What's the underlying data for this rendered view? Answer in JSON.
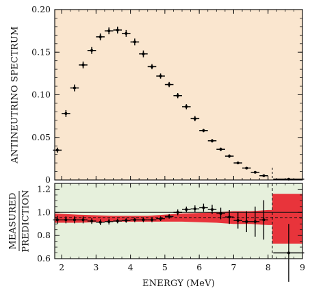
{
  "chart_data": [
    {
      "type": "scatter",
      "title": "",
      "xlabel": "",
      "ylabel": "ANTINEUTRINO SPECTRUM",
      "xlim": [
        1.8,
        9.0
      ],
      "ylim": [
        0,
        0.2
      ],
      "background": "#fae6cf",
      "yticks": [
        "0",
        "0.05",
        "0.10",
        "0.15",
        "0.20"
      ],
      "grid": false,
      "series": [
        {
          "color": "#000000",
          "x": [
            1.875,
            2.125,
            2.375,
            2.625,
            2.875,
            3.125,
            3.375,
            3.625,
            3.875,
            4.125,
            4.375,
            4.625,
            4.875,
            5.125,
            5.375,
            5.625,
            5.875,
            6.125,
            6.375,
            6.625,
            6.875,
            7.125,
            7.375,
            7.625,
            7.875,
            8.6
          ],
          "y": [
            0.035,
            0.078,
            0.108,
            0.135,
            0.152,
            0.168,
            0.175,
            0.176,
            0.172,
            0.162,
            0.148,
            0.133,
            0.122,
            0.112,
            0.099,
            0.086,
            0.072,
            0.058,
            0.046,
            0.036,
            0.028,
            0.02,
            0.014,
            0.009,
            0.005,
            0.001
          ],
          "xerr": [
            0.125,
            0.125,
            0.125,
            0.125,
            0.125,
            0.125,
            0.125,
            0.125,
            0.125,
            0.125,
            0.125,
            0.125,
            0.125,
            0.125,
            0.125,
            0.125,
            0.125,
            0.125,
            0.125,
            0.125,
            0.125,
            0.125,
            0.125,
            0.125,
            0.125,
            0.45
          ],
          "yerr": [
            0.003,
            0.004,
            0.004,
            0.004,
            0.004,
            0.004,
            0.004,
            0.004,
            0.004,
            0.004,
            0.004,
            0.003,
            0.003,
            0.003,
            0.003,
            0.003,
            0.003,
            0.002,
            0.002,
            0.002,
            0.002,
            0.001,
            0.001,
            0.001,
            0.001,
            0.001
          ]
        }
      ]
    },
    {
      "type": "scatter",
      "title": "",
      "xlabel": "ENERGY (MeV)",
      "ylabel": "MEASURED / PREDICTION",
      "ylabel_numerator": "MEASURED",
      "ylabel_denominator": "PREDICTION",
      "xlim": [
        1.8,
        9.0
      ],
      "ylim": [
        0.6,
        1.25
      ],
      "background": "#e6f0dc",
      "xticks": [
        "2",
        "3",
        "4",
        "5",
        "6",
        "7",
        "8",
        "9"
      ],
      "yticks": [
        "0.6",
        "0.8",
        "1.0",
        "1.2"
      ],
      "grid": false,
      "reference_line_y": 1.0,
      "mean_dashed_line_y": 0.955,
      "threshold_dashed_x": 8.125,
      "band_color": "#e8343b",
      "uncertainty_band": {
        "x": [
          1.8,
          2.5,
          3.5,
          4.5,
          5.5,
          6.5,
          7.0,
          7.5,
          8.0,
          8.125
        ],
        "lo": [
          0.91,
          0.91,
          0.92,
          0.92,
          0.92,
          0.91,
          0.9,
          0.9,
          0.89,
          0.89
        ],
        "hi": [
          0.99,
          0.98,
          0.97,
          0.97,
          0.99,
          1.0,
          1.01,
          1.01,
          1.02,
          1.02
        ]
      },
      "last_bin_band": {
        "x0": 8.125,
        "x1": 9.0,
        "lo": 0.73,
        "hi": 1.16
      },
      "series": [
        {
          "color": "#000000",
          "x": [
            1.875,
            2.125,
            2.375,
            2.625,
            2.875,
            3.125,
            3.375,
            3.625,
            3.875,
            4.125,
            4.375,
            4.625,
            4.875,
            5.125,
            5.375,
            5.625,
            5.875,
            6.125,
            6.375,
            6.625,
            6.875,
            7.125,
            7.375,
            7.625,
            7.875,
            8.6
          ],
          "y": [
            0.935,
            0.935,
            0.935,
            0.935,
            0.925,
            0.915,
            0.92,
            0.925,
            0.93,
            0.935,
            0.935,
            0.935,
            0.945,
            0.965,
            1.0,
            1.025,
            1.03,
            1.04,
            1.025,
            0.99,
            0.96,
            0.93,
            0.92,
            0.92,
            0.935,
            0.65
          ],
          "xerr": [
            0.125,
            0.125,
            0.125,
            0.125,
            0.125,
            0.125,
            0.125,
            0.125,
            0.125,
            0.125,
            0.125,
            0.125,
            0.125,
            0.125,
            0.125,
            0.125,
            0.125,
            0.125,
            0.125,
            0.125,
            0.125,
            0.125,
            0.125,
            0.125,
            0.125,
            0.45
          ],
          "yerr": [
            0.035,
            0.03,
            0.03,
            0.03,
            0.025,
            0.025,
            0.025,
            0.02,
            0.02,
            0.02,
            0.02,
            0.02,
            0.02,
            0.02,
            0.025,
            0.025,
            0.03,
            0.035,
            0.04,
            0.05,
            0.06,
            0.07,
            0.09,
            0.13,
            0.17,
            0.25
          ]
        }
      ]
    }
  ]
}
